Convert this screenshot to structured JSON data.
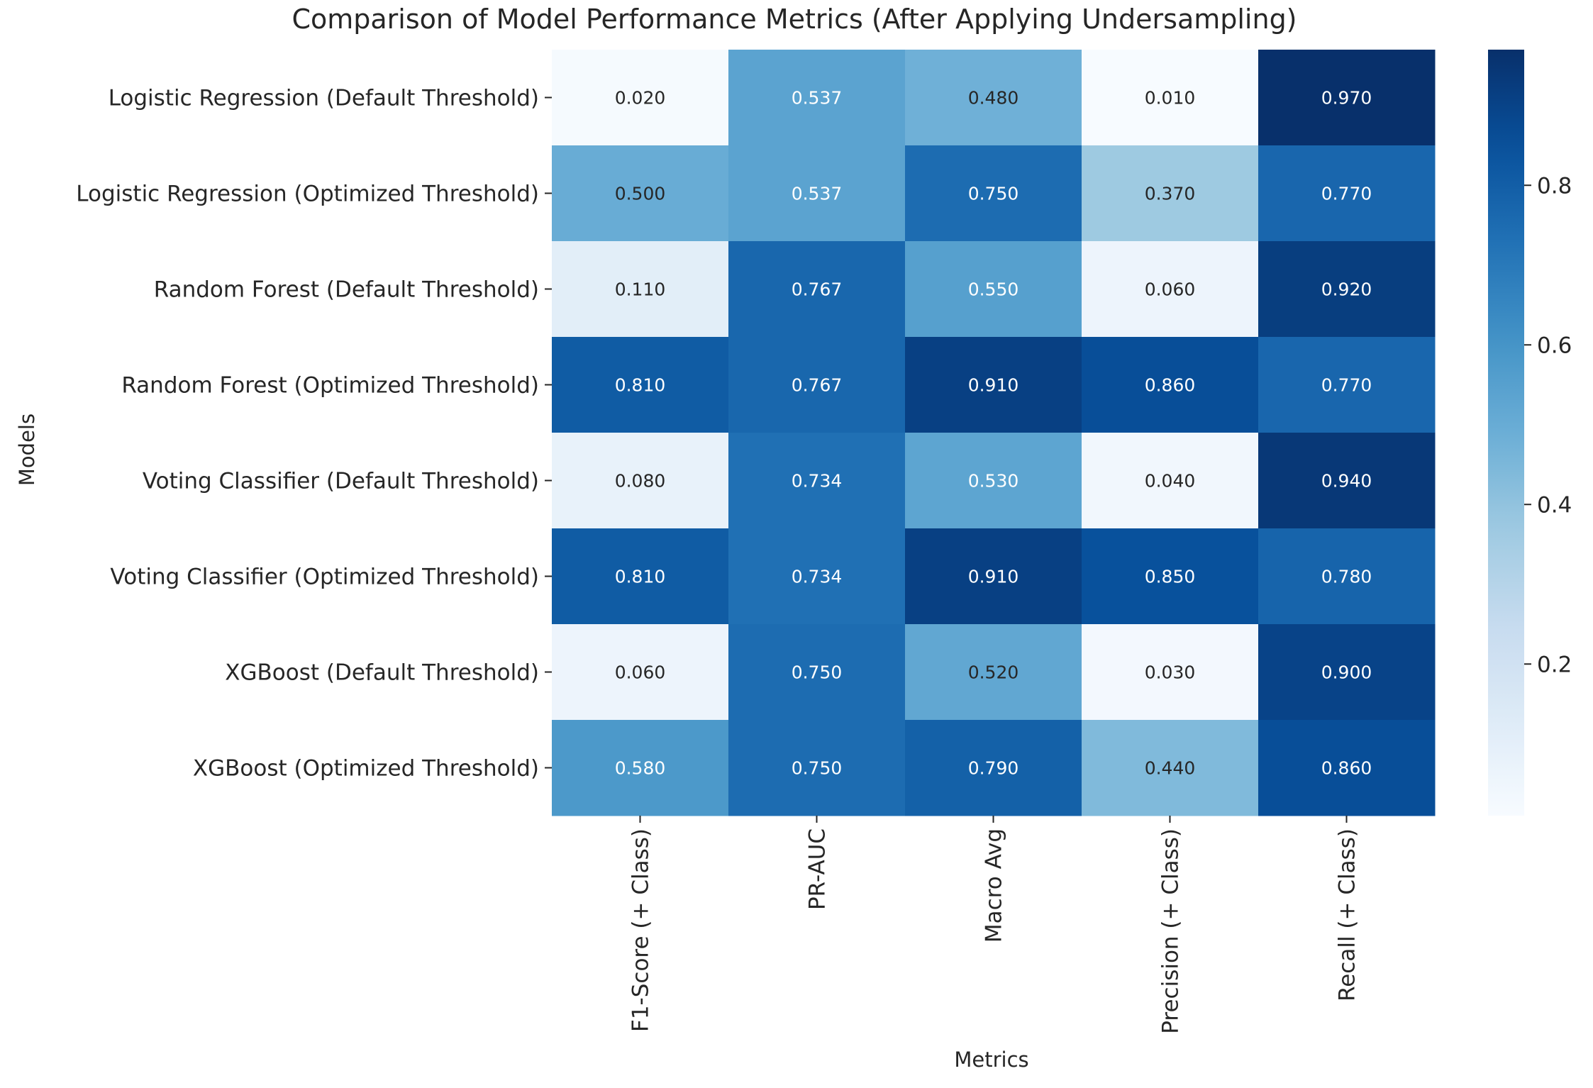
{
  "chart_data": {
    "type": "heatmap",
    "title": "Comparison of Model Performance Metrics (After Applying Undersampling)",
    "xlabel": "Metrics",
    "ylabel": "Models",
    "columns": [
      "F1-Score (+ Class)",
      "PR-AUC",
      "Macro Avg",
      "Precision (+ Class)",
      "Recall (+ Class)"
    ],
    "rows": [
      "Logistic Regression (Default Threshold)",
      "Logistic Regression (Optimized Threshold)",
      "Random Forest (Default Threshold)",
      "Random Forest (Optimized Threshold)",
      "Voting Classifier (Default Threshold)",
      "Voting Classifier (Optimized Threshold)",
      "XGBoost (Default Threshold)",
      "XGBoost (Optimized Threshold)"
    ],
    "values": [
      [
        0.02,
        0.537,
        0.48,
        0.01,
        0.97
      ],
      [
        0.5,
        0.537,
        0.75,
        0.37,
        0.77
      ],
      [
        0.11,
        0.767,
        0.55,
        0.06,
        0.92
      ],
      [
        0.81,
        0.767,
        0.91,
        0.86,
        0.77
      ],
      [
        0.08,
        0.734,
        0.53,
        0.04,
        0.94
      ],
      [
        0.81,
        0.734,
        0.91,
        0.85,
        0.78
      ],
      [
        0.06,
        0.75,
        0.52,
        0.03,
        0.9
      ],
      [
        0.58,
        0.75,
        0.79,
        0.44,
        0.86
      ]
    ],
    "value_format": "0.000",
    "colormap": "Blues",
    "color_range": [
      0.01,
      0.97
    ],
    "colorbar_ticks": [
      "0.2",
      "0.4",
      "0.6",
      "0.8"
    ]
  }
}
